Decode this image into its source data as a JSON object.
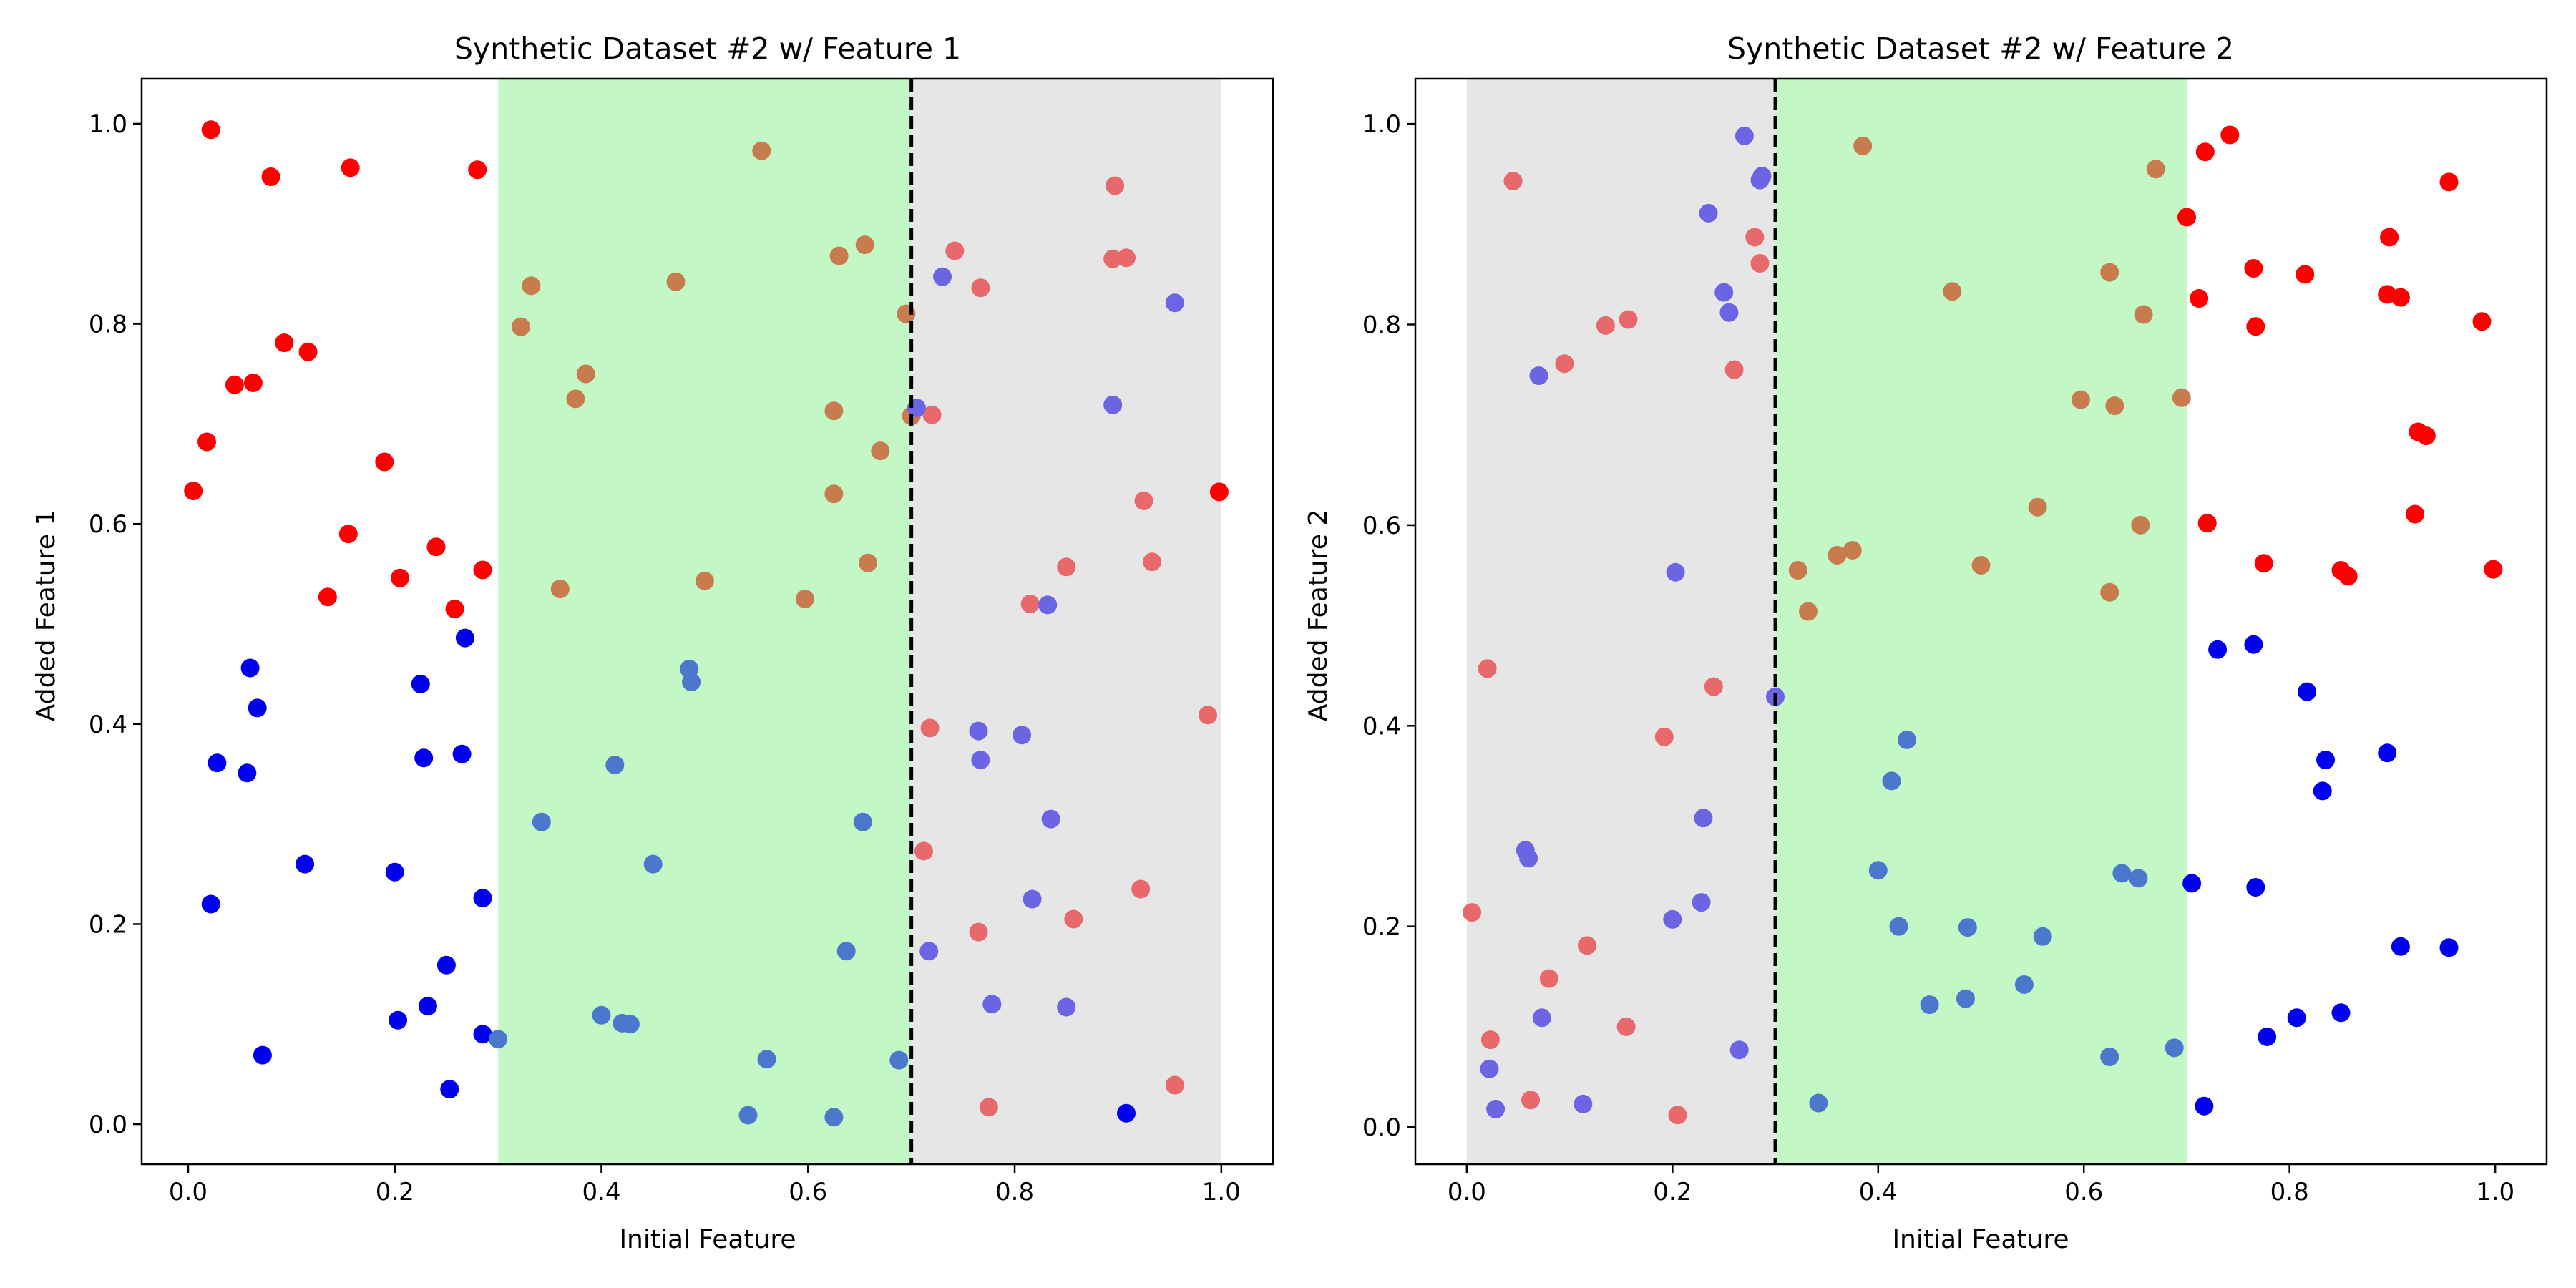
{
  "colors": {
    "red": "#ff0000",
    "blue": "#0000ee",
    "light_red": "#e8696b",
    "light_blue": "#6b64e3",
    "brown": "#c87c4e",
    "steel_blue": "#4b78cc",
    "green_band": "#c4f7c6",
    "gray_band": "#e6e6e6"
  },
  "chart_data": [
    {
      "type": "scatter",
      "title": "Synthetic Dataset #2 w/ Feature 1",
      "xlabel": "Initial Feature",
      "ylabel": "Added Feature 1",
      "xlim": [
        -0.045,
        1.05
      ],
      "ylim": [
        -0.04,
        1.045
      ],
      "xticks": [
        0.0,
        0.2,
        0.4,
        0.6,
        0.8,
        1.0
      ],
      "yticks": [
        0.0,
        0.2,
        0.4,
        0.6,
        0.8,
        1.0
      ],
      "grid": false,
      "bands": [
        {
          "x0": 0.3,
          "x1": 0.7,
          "color": "green_band"
        },
        {
          "x0": 0.7,
          "x1": 1.0,
          "color": "gray_band"
        }
      ],
      "vline": {
        "x": 0.7,
        "style": "dashed"
      },
      "series": [
        {
          "color": "red",
          "points": [
            [
              0.005,
              0.633
            ],
            [
              0.018,
              0.682
            ],
            [
              0.022,
              0.994
            ],
            [
              0.045,
              0.739
            ],
            [
              0.063,
              0.741
            ],
            [
              0.08,
              0.947
            ],
            [
              0.093,
              0.781
            ],
            [
              0.116,
              0.772
            ],
            [
              0.135,
              0.527
            ],
            [
              0.155,
              0.59
            ],
            [
              0.157,
              0.956
            ],
            [
              0.19,
              0.662
            ],
            [
              0.205,
              0.546
            ],
            [
              0.24,
              0.577
            ],
            [
              0.258,
              0.515
            ],
            [
              0.28,
              0.954
            ],
            [
              0.285,
              0.554
            ],
            [
              0.998,
              0.632
            ]
          ]
        },
        {
          "color": "blue",
          "points": [
            [
              0.022,
              0.22
            ],
            [
              0.028,
              0.361
            ],
            [
              0.057,
              0.351
            ],
            [
              0.06,
              0.456
            ],
            [
              0.067,
              0.416
            ],
            [
              0.072,
              0.069
            ],
            [
              0.113,
              0.26
            ],
            [
              0.2,
              0.252
            ],
            [
              0.203,
              0.104
            ],
            [
              0.225,
              0.44
            ],
            [
              0.228,
              0.366
            ],
            [
              0.232,
              0.118
            ],
            [
              0.25,
              0.159
            ],
            [
              0.253,
              0.035
            ],
            [
              0.265,
              0.37
            ],
            [
              0.268,
              0.486
            ],
            [
              0.285,
              0.226
            ],
            [
              0.285,
              0.09
            ],
            [
              0.908,
              0.011
            ]
          ]
        },
        {
          "color": "brown",
          "points": [
            [
              0.322,
              0.797
            ],
            [
              0.332,
              0.838
            ],
            [
              0.36,
              0.535
            ],
            [
              0.375,
              0.725
            ],
            [
              0.385,
              0.75
            ],
            [
              0.472,
              0.842
            ],
            [
              0.5,
              0.543
            ],
            [
              0.555,
              0.973
            ],
            [
              0.597,
              0.525
            ],
            [
              0.625,
              0.713
            ],
            [
              0.625,
              0.63
            ],
            [
              0.63,
              0.868
            ],
            [
              0.655,
              0.879
            ],
            [
              0.658,
              0.561
            ],
            [
              0.67,
              0.673
            ],
            [
              0.695,
              0.81
            ],
            [
              0.7,
              0.708
            ]
          ]
        },
        {
          "color": "steel_blue",
          "points": [
            [
              0.3,
              0.085
            ],
            [
              0.342,
              0.302
            ],
            [
              0.4,
              0.109
            ],
            [
              0.413,
              0.359
            ],
            [
              0.42,
              0.101
            ],
            [
              0.428,
              0.1
            ],
            [
              0.45,
              0.26
            ],
            [
              0.485,
              0.455
            ],
            [
              0.487,
              0.442
            ],
            [
              0.542,
              0.009
            ],
            [
              0.56,
              0.065
            ],
            [
              0.625,
              0.007
            ],
            [
              0.637,
              0.173
            ],
            [
              0.653,
              0.302
            ],
            [
              0.688,
              0.064
            ]
          ]
        },
        {
          "color": "light_red",
          "points": [
            [
              0.712,
              0.273
            ],
            [
              0.718,
              0.396
            ],
            [
              0.72,
              0.709
            ],
            [
              0.742,
              0.873
            ],
            [
              0.765,
              0.192
            ],
            [
              0.767,
              0.836
            ],
            [
              0.775,
              0.017
            ],
            [
              0.815,
              0.52
            ],
            [
              0.85,
              0.557
            ],
            [
              0.857,
              0.205
            ],
            [
              0.895,
              0.865
            ],
            [
              0.897,
              0.938
            ],
            [
              0.908,
              0.866
            ],
            [
              0.922,
              0.235
            ],
            [
              0.925,
              0.623
            ],
            [
              0.933,
              0.562
            ],
            [
              0.955,
              0.039
            ],
            [
              0.987,
              0.409
            ]
          ]
        },
        {
          "color": "light_blue",
          "points": [
            [
              0.705,
              0.716
            ],
            [
              0.717,
              0.173
            ],
            [
              0.73,
              0.847
            ],
            [
              0.765,
              0.393
            ],
            [
              0.767,
              0.364
            ],
            [
              0.778,
              0.12
            ],
            [
              0.807,
              0.389
            ],
            [
              0.817,
              0.225
            ],
            [
              0.832,
              0.519
            ],
            [
              0.835,
              0.305
            ],
            [
              0.85,
              0.117
            ],
            [
              0.895,
              0.719
            ],
            [
              0.955,
              0.821
            ]
          ]
        }
      ]
    },
    {
      "type": "scatter",
      "title": "Synthetic Dataset #2 w/ Feature 2",
      "xlabel": "Initial Feature",
      "ylabel": "Added Feature 2",
      "xlim": [
        -0.05,
        1.05
      ],
      "ylim": [
        -0.037,
        1.045
      ],
      "xticks": [
        0.0,
        0.2,
        0.4,
        0.6,
        0.8,
        1.0
      ],
      "yticks": [
        0.0,
        0.2,
        0.4,
        0.6,
        0.8,
        1.0
      ],
      "grid": false,
      "bands": [
        {
          "x0": 0.0,
          "x1": 0.3,
          "color": "gray_band"
        },
        {
          "x0": 0.3,
          "x1": 0.7,
          "color": "green_band"
        }
      ],
      "vline": {
        "x": 0.3,
        "style": "dashed"
      },
      "series": [
        {
          "color": "light_red",
          "points": [
            [
              0.005,
              0.214
            ],
            [
              0.02,
              0.457
            ],
            [
              0.023,
              0.087
            ],
            [
              0.045,
              0.943
            ],
            [
              0.062,
              0.027
            ],
            [
              0.08,
              0.148
            ],
            [
              0.095,
              0.761
            ],
            [
              0.117,
              0.181
            ],
            [
              0.135,
              0.799
            ],
            [
              0.155,
              0.1
            ],
            [
              0.157,
              0.805
            ],
            [
              0.192,
              0.389
            ],
            [
              0.205,
              0.012
            ],
            [
              0.24,
              0.439
            ],
            [
              0.26,
              0.755
            ],
            [
              0.28,
              0.887
            ],
            [
              0.285,
              0.861
            ]
          ]
        },
        {
          "color": "light_blue",
          "points": [
            [
              0.022,
              0.058
            ],
            [
              0.028,
              0.018
            ],
            [
              0.057,
              0.276
            ],
            [
              0.06,
              0.268
            ],
            [
              0.07,
              0.749
            ],
            [
              0.073,
              0.109
            ],
            [
              0.113,
              0.023
            ],
            [
              0.2,
              0.207
            ],
            [
              0.203,
              0.553
            ],
            [
              0.228,
              0.224
            ],
            [
              0.23,
              0.308
            ],
            [
              0.235,
              0.911
            ],
            [
              0.25,
              0.832
            ],
            [
              0.255,
              0.812
            ],
            [
              0.265,
              0.077
            ],
            [
              0.27,
              0.988
            ],
            [
              0.285,
              0.944
            ],
            [
              0.287,
              0.948
            ],
            [
              0.3,
              0.429
            ]
          ]
        },
        {
          "color": "brown",
          "points": [
            [
              0.322,
              0.555
            ],
            [
              0.332,
              0.514
            ],
            [
              0.36,
              0.57
            ],
            [
              0.375,
              0.575
            ],
            [
              0.385,
              0.978
            ],
            [
              0.472,
              0.833
            ],
            [
              0.5,
              0.56
            ],
            [
              0.555,
              0.618
            ],
            [
              0.597,
              0.725
            ],
            [
              0.625,
              0.852
            ],
            [
              0.625,
              0.533
            ],
            [
              0.63,
              0.719
            ],
            [
              0.655,
              0.6
            ],
            [
              0.658,
              0.81
            ],
            [
              0.67,
              0.955
            ],
            [
              0.695,
              0.727
            ]
          ]
        },
        {
          "color": "steel_blue",
          "points": [
            [
              0.342,
              0.024
            ],
            [
              0.4,
              0.256
            ],
            [
              0.413,
              0.345
            ],
            [
              0.42,
              0.2
            ],
            [
              0.428,
              0.386
            ],
            [
              0.45,
              0.122
            ],
            [
              0.485,
              0.128
            ],
            [
              0.487,
              0.199
            ],
            [
              0.542,
              0.142
            ],
            [
              0.56,
              0.19
            ],
            [
              0.625,
              0.07
            ],
            [
              0.637,
              0.253
            ],
            [
              0.653,
              0.248
            ],
            [
              0.688,
              0.079
            ]
          ]
        },
        {
          "color": "red",
          "points": [
            [
              0.7,
              0.907
            ],
            [
              0.712,
              0.826
            ],
            [
              0.718,
              0.972
            ],
            [
              0.72,
              0.602
            ],
            [
              0.742,
              0.989
            ],
            [
              0.765,
              0.856
            ],
            [
              0.767,
              0.798
            ],
            [
              0.775,
              0.562
            ],
            [
              0.815,
              0.85
            ],
            [
              0.85,
              0.555
            ],
            [
              0.857,
              0.549
            ],
            [
              0.895,
              0.83
            ],
            [
              0.897,
              0.887
            ],
            [
              0.908,
              0.827
            ],
            [
              0.922,
              0.611
            ],
            [
              0.925,
              0.693
            ],
            [
              0.933,
              0.689
            ],
            [
              0.955,
              0.942
            ],
            [
              0.987,
              0.803
            ],
            [
              0.998,
              0.556
            ]
          ]
        },
        {
          "color": "blue",
          "points": [
            [
              0.705,
              0.243
            ],
            [
              0.717,
              0.021
            ],
            [
              0.73,
              0.476
            ],
            [
              0.765,
              0.481
            ],
            [
              0.767,
              0.239
            ],
            [
              0.778,
              0.09
            ],
            [
              0.807,
              0.109
            ],
            [
              0.817,
              0.434
            ],
            [
              0.832,
              0.335
            ],
            [
              0.835,
              0.366
            ],
            [
              0.85,
              0.114
            ],
            [
              0.895,
              0.373
            ],
            [
              0.908,
              0.18
            ],
            [
              0.955,
              0.179
            ]
          ]
        }
      ]
    }
  ]
}
